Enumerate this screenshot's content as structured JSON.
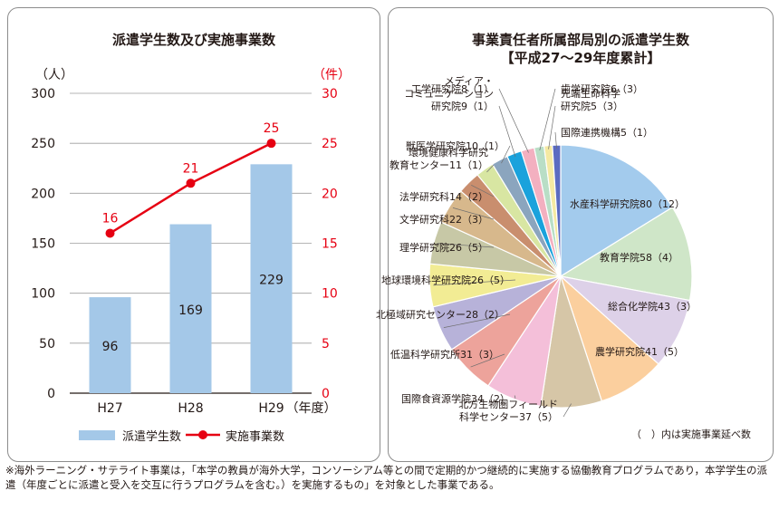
{
  "chart_data": [
    {
      "type": "bar+line",
      "title": "派遣学生数及び実施事業数",
      "categories": [
        "H27",
        "H28",
        "H29"
      ],
      "x_unit_label": "（年度）",
      "left_axis": {
        "unit_label": "（人）",
        "ylim": [
          0,
          300
        ],
        "ticks": [
          "0",
          "50",
          "100",
          "150",
          "200",
          "250",
          "300"
        ]
      },
      "right_axis": {
        "unit_label": "（件）",
        "ylim": [
          0,
          30
        ],
        "ticks": [
          "0",
          "5",
          "10",
          "15",
          "20",
          "25",
          "30"
        ],
        "color": "#e60012"
      },
      "series": [
        {
          "name": "派遣学生数",
          "type": "bar",
          "axis": "left",
          "values": [
            96,
            169,
            229
          ],
          "color": "#a4c8e8"
        },
        {
          "name": "実施事業数",
          "type": "line",
          "axis": "right",
          "values": [
            16,
            21,
            25
          ],
          "color": "#e60012"
        }
      ],
      "grid": true,
      "legend": "bottom"
    },
    {
      "type": "pie",
      "title_lines": [
        "事業責任者所属部局別の派遣学生数",
        "【平成27〜29年度累計】"
      ],
      "note": "（　）内は実施事業延べ数",
      "slices": [
        {
          "label": "水産科学研究院80（12）",
          "value": 80,
          "projects": 12,
          "color": "#a3cbed"
        },
        {
          "label": "教育学院58（4）",
          "value": 58,
          "projects": 4,
          "color": "#cfe6c8"
        },
        {
          "label": "総合化学院43（3）",
          "value": 43,
          "projects": 3,
          "color": "#ddd1e8"
        },
        {
          "label": "農学研究院41（5）",
          "value": 41,
          "projects": 5,
          "color": "#fbcf9e"
        },
        {
          "label": "北方生物圏フィールド科学センター37（5）",
          "label_lines": [
            "北方生物圏フィールド",
            "科学センター37（5）"
          ],
          "value": 37,
          "projects": 5,
          "color": "#d6c6a7"
        },
        {
          "label": "国際食資源学院34（2）",
          "value": 34,
          "projects": 2,
          "color": "#f4bfd9"
        },
        {
          "label": "低温科学研究所31（3）",
          "value": 31,
          "projects": 3,
          "color": "#eda39b"
        },
        {
          "label": "北極域研究センター28（2）",
          "value": 28,
          "projects": 2,
          "color": "#b7b2d9"
        },
        {
          "label": "地球環境科学研究院26（5）",
          "value": 26,
          "projects": 5,
          "color": "#f2ec94"
        },
        {
          "label": "理学研究院26（5）",
          "value": 26,
          "projects": 5,
          "color": "#c7c8a6"
        },
        {
          "label": "文学研究科22（3）",
          "value": 22,
          "projects": 3,
          "color": "#d7b88c"
        },
        {
          "label": "法学研究科14（2）",
          "value": 14,
          "projects": 2,
          "color": "#c98e6e"
        },
        {
          "label": "環境健康科学研究教育センター11（1）",
          "label_lines": [
            "環境健康科学研究",
            "教育センター11（1）"
          ],
          "value": 11,
          "projects": 1,
          "color": "#d8e6a2"
        },
        {
          "label": "獣医学研究院10（1）",
          "value": 10,
          "projects": 1,
          "color": "#8ba5be"
        },
        {
          "label": "メディア・コミュニケーション研究院9（1）",
          "label_lines": [
            "メディア・",
            "コミュニケーション",
            "研究院9（1）"
          ],
          "value": 9,
          "projects": 1,
          "color": "#1aa2dc"
        },
        {
          "label": "工学研究院8（1）",
          "value": 8,
          "projects": 1,
          "color": "#f3b0c0"
        },
        {
          "label": "歯学研究院6（3）",
          "value": 6,
          "projects": 3,
          "color": "#b9dec6"
        },
        {
          "label": "先端生命科学研究院5（3）",
          "label_lines": [
            "先端生命科学",
            "研究院5（3）"
          ],
          "value": 5,
          "projects": 3,
          "color": "#f5e9a2"
        },
        {
          "label": "国際連携機構5（1）",
          "value": 5,
          "projects": 1,
          "color": "#5b6bc1"
        }
      ]
    }
  ],
  "footnote": "※海外ラーニング・サテライト事業は，「本学の教員が海外大学，コンソーシアム等との間で定期的かつ継続的に実施する協働教育プログラムであり，本学学生の派遣（年度ごとに派遣と受入を交互に行うプログラムを含む。）を実施するもの」を対象とした事業である。"
}
